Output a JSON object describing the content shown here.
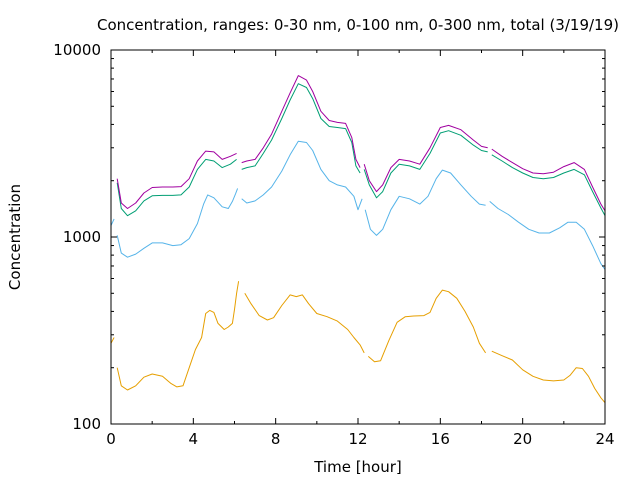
{
  "chart_data": {
    "type": "line",
    "title": "Concentration, ranges: 0-30 nm, 0-100 nm, 0-300 nm, total (3/19/19)",
    "xlabel": "Time [hour]",
    "ylabel": "Concentration",
    "xlim": [
      0,
      24
    ],
    "ylim": [
      100,
      10000
    ],
    "yscale": "log",
    "grid": false,
    "legend": "none",
    "x_ticks": [
      0,
      4,
      8,
      12,
      16,
      20,
      24
    ],
    "x_tick_labels": [
      "0",
      "4",
      "8",
      "12",
      "16",
      "20",
      "24"
    ],
    "y_ticks": [
      100,
      1000,
      10000
    ],
    "y_tick_labels": [
      "100",
      "1000",
      "10000"
    ],
    "series": [
      {
        "color": "#e69f00",
        "segments": [
          [
            [
              0.0,
              270
            ],
            [
              0.15,
              290
            ]
          ],
          [
            [
              0.3,
              200
            ],
            [
              0.5,
              160
            ],
            [
              0.8,
              152
            ],
            [
              1.2,
              160
            ],
            [
              1.6,
              178
            ],
            [
              2.0,
              185
            ],
            [
              2.5,
              180
            ],
            [
              2.9,
              165
            ],
            [
              3.2,
              158
            ],
            [
              3.5,
              160
            ],
            [
              3.8,
              200
            ],
            [
              4.1,
              250
            ],
            [
              4.4,
              290
            ],
            [
              4.6,
              390
            ],
            [
              4.8,
              405
            ],
            [
              5.0,
              395
            ],
            [
              5.2,
              345
            ],
            [
              5.5,
              320
            ],
            [
              5.7,
              330
            ],
            [
              5.9,
              345
            ],
            [
              6.0,
              410
            ],
            [
              6.1,
              500
            ],
            [
              6.2,
              580
            ]
          ],
          [
            [
              6.5,
              500
            ],
            [
              6.8,
              440
            ],
            [
              7.2,
              380
            ],
            [
              7.6,
              360
            ],
            [
              7.9,
              370
            ],
            [
              8.3,
              430
            ],
            [
              8.7,
              490
            ],
            [
              9.0,
              480
            ],
            [
              9.3,
              490
            ],
            [
              9.6,
              440
            ],
            [
              10.0,
              390
            ],
            [
              10.5,
              375
            ],
            [
              11.0,
              355
            ],
            [
              11.5,
              320
            ],
            [
              11.8,
              290
            ],
            [
              12.1,
              265
            ],
            [
              12.3,
              240
            ]
          ],
          [
            [
              12.5,
              230
            ],
            [
              12.8,
              215
            ],
            [
              13.1,
              218
            ],
            [
              13.5,
              280
            ],
            [
              13.9,
              350
            ],
            [
              14.3,
              375
            ],
            [
              14.7,
              378
            ],
            [
              15.2,
              380
            ],
            [
              15.5,
              395
            ],
            [
              15.8,
              470
            ],
            [
              16.1,
              520
            ],
            [
              16.4,
              510
            ],
            [
              16.8,
              470
            ],
            [
              17.2,
              400
            ],
            [
              17.6,
              330
            ],
            [
              17.9,
              270
            ],
            [
              18.2,
              240
            ]
          ],
          [
            [
              18.5,
              245
            ],
            [
              19.0,
              232
            ],
            [
              19.5,
              220
            ],
            [
              20.0,
              195
            ],
            [
              20.5,
              180
            ],
            [
              21.0,
              172
            ],
            [
              21.5,
              170
            ],
            [
              22.0,
              172
            ],
            [
              22.3,
              182
            ],
            [
              22.6,
              200
            ],
            [
              22.9,
              198
            ],
            [
              23.2,
              180
            ],
            [
              23.5,
              155
            ],
            [
              23.8,
              138
            ],
            [
              24.0,
              130
            ]
          ]
        ]
      },
      {
        "color": "#56b4e9",
        "segments": [
          [
            [
              0.0,
              1150
            ],
            [
              0.15,
              1250
            ]
          ],
          [
            [
              0.3,
              1020
            ],
            [
              0.5,
              820
            ],
            [
              0.8,
              780
            ],
            [
              1.2,
              810
            ],
            [
              1.6,
              870
            ],
            [
              2.0,
              930
            ],
            [
              2.5,
              930
            ],
            [
              3.0,
              900
            ],
            [
              3.4,
              910
            ],
            [
              3.8,
              980
            ],
            [
              4.2,
              1180
            ],
            [
              4.5,
              1500
            ],
            [
              4.7,
              1680
            ],
            [
              5.0,
              1620
            ],
            [
              5.4,
              1450
            ],
            [
              5.7,
              1420
            ],
            [
              5.9,
              1550
            ],
            [
              6.05,
              1700
            ],
            [
              6.15,
              1820
            ]
          ],
          [
            [
              6.35,
              1600
            ],
            [
              6.6,
              1520
            ],
            [
              7.0,
              1560
            ],
            [
              7.4,
              1680
            ],
            [
              7.8,
              1850
            ],
            [
              8.3,
              2250
            ],
            [
              8.7,
              2750
            ],
            [
              9.1,
              3250
            ],
            [
              9.5,
              3200
            ],
            [
              9.8,
              2900
            ],
            [
              10.2,
              2300
            ],
            [
              10.6,
              2000
            ],
            [
              11.0,
              1900
            ],
            [
              11.4,
              1850
            ],
            [
              11.8,
              1650
            ],
            [
              12.0,
              1400
            ],
            [
              12.2,
              1600
            ]
          ],
          [
            [
              12.35,
              1400
            ],
            [
              12.6,
              1100
            ],
            [
              12.9,
              1020
            ],
            [
              13.2,
              1100
            ],
            [
              13.6,
              1400
            ],
            [
              14.0,
              1650
            ],
            [
              14.5,
              1600
            ],
            [
              15.0,
              1500
            ],
            [
              15.4,
              1650
            ],
            [
              15.8,
              2050
            ],
            [
              16.1,
              2280
            ],
            [
              16.5,
              2200
            ],
            [
              17.0,
              1900
            ],
            [
              17.5,
              1650
            ],
            [
              17.9,
              1500
            ],
            [
              18.2,
              1480
            ]
          ],
          [
            [
              18.4,
              1550
            ],
            [
              18.8,
              1420
            ],
            [
              19.3,
              1320
            ],
            [
              19.8,
              1200
            ],
            [
              20.3,
              1100
            ],
            [
              20.8,
              1050
            ],
            [
              21.3,
              1050
            ],
            [
              21.8,
              1120
            ],
            [
              22.2,
              1200
            ],
            [
              22.6,
              1200
            ],
            [
              23.0,
              1100
            ],
            [
              23.4,
              900
            ],
            [
              23.8,
              720
            ],
            [
              24.0,
              670
            ]
          ]
        ]
      },
      {
        "color": "#009e73",
        "segments": [
          [
            [
              0.3,
              1950
            ],
            [
              0.5,
              1420
            ],
            [
              0.8,
              1300
            ],
            [
              1.2,
              1380
            ],
            [
              1.6,
              1560
            ],
            [
              2.0,
              1660
            ],
            [
              2.5,
              1670
            ],
            [
              3.0,
              1670
            ],
            [
              3.4,
              1680
            ],
            [
              3.8,
              1850
            ],
            [
              4.2,
              2300
            ],
            [
              4.6,
              2600
            ],
            [
              5.0,
              2550
            ],
            [
              5.4,
              2350
            ],
            [
              5.8,
              2450
            ],
            [
              6.1,
              2600
            ]
          ],
          [
            [
              6.35,
              2300
            ],
            [
              6.6,
              2350
            ],
            [
              7.0,
              2400
            ],
            [
              7.4,
              2800
            ],
            [
              7.8,
              3300
            ],
            [
              8.3,
              4300
            ],
            [
              8.7,
              5400
            ],
            [
              9.1,
              6600
            ],
            [
              9.5,
              6300
            ],
            [
              9.8,
              5500
            ],
            [
              10.2,
              4300
            ],
            [
              10.6,
              3900
            ],
            [
              11.0,
              3850
            ],
            [
              11.4,
              3800
            ],
            [
              11.7,
              3200
            ],
            [
              11.9,
              2400
            ],
            [
              12.1,
              2200
            ]
          ],
          [
            [
              12.3,
              2300
            ],
            [
              12.55,
              1900
            ],
            [
              12.9,
              1620
            ],
            [
              13.2,
              1750
            ],
            [
              13.6,
              2200
            ],
            [
              14.0,
              2450
            ],
            [
              14.5,
              2400
            ],
            [
              15.0,
              2300
            ],
            [
              15.5,
              2800
            ],
            [
              16.0,
              3600
            ],
            [
              16.4,
              3700
            ],
            [
              17.0,
              3500
            ],
            [
              17.6,
              3100
            ],
            [
              18.0,
              2900
            ],
            [
              18.3,
              2850
            ]
          ],
          [
            [
              18.5,
              2750
            ],
            [
              19.0,
              2550
            ],
            [
              19.5,
              2350
            ],
            [
              20.0,
              2200
            ],
            [
              20.5,
              2080
            ],
            [
              21.0,
              2050
            ],
            [
              21.5,
              2080
            ],
            [
              22.0,
              2200
            ],
            [
              22.5,
              2300
            ],
            [
              23.0,
              2150
            ],
            [
              23.4,
              1750
            ],
            [
              23.8,
              1430
            ],
            [
              24.0,
              1300
            ]
          ]
        ]
      },
      {
        "color": "#a000a0",
        "segments": [
          [
            [
              0.3,
              2050
            ],
            [
              0.5,
              1520
            ],
            [
              0.8,
              1420
            ],
            [
              1.2,
              1520
            ],
            [
              1.6,
              1720
            ],
            [
              2.0,
              1840
            ],
            [
              2.5,
              1850
            ],
            [
              3.0,
              1850
            ],
            [
              3.4,
              1860
            ],
            [
              3.8,
              2050
            ],
            [
              4.2,
              2550
            ],
            [
              4.6,
              2880
            ],
            [
              5.0,
              2850
            ],
            [
              5.4,
              2600
            ],
            [
              5.8,
              2700
            ],
            [
              6.1,
              2800
            ]
          ],
          [
            [
              6.35,
              2500
            ],
            [
              6.6,
              2550
            ],
            [
              7.0,
              2600
            ],
            [
              7.4,
              3000
            ],
            [
              7.8,
              3550
            ],
            [
              8.3,
              4700
            ],
            [
              8.7,
              5900
            ],
            [
              9.1,
              7300
            ],
            [
              9.5,
              6900
            ],
            [
              9.8,
              6000
            ],
            [
              10.2,
              4700
            ],
            [
              10.6,
              4200
            ],
            [
              11.0,
              4100
            ],
            [
              11.4,
              4050
            ],
            [
              11.7,
              3400
            ],
            [
              11.9,
              2600
            ],
            [
              12.1,
              2350
            ]
          ],
          [
            [
              12.3,
              2450
            ],
            [
              12.55,
              2000
            ],
            [
              12.9,
              1750
            ],
            [
              13.2,
              1900
            ],
            [
              13.6,
              2350
            ],
            [
              14.0,
              2600
            ],
            [
              14.5,
              2550
            ],
            [
              15.0,
              2450
            ],
            [
              15.5,
              3000
            ],
            [
              16.0,
              3850
            ],
            [
              16.4,
              3950
            ],
            [
              17.0,
              3750
            ],
            [
              17.6,
              3300
            ],
            [
              18.0,
              3050
            ],
            [
              18.3,
              3000
            ]
          ],
          [
            [
              18.5,
              2950
            ],
            [
              19.0,
              2700
            ],
            [
              19.5,
              2500
            ],
            [
              20.0,
              2320
            ],
            [
              20.5,
              2200
            ],
            [
              21.0,
              2180
            ],
            [
              21.5,
              2220
            ],
            [
              22.0,
              2380
            ],
            [
              22.5,
              2500
            ],
            [
              23.0,
              2300
            ],
            [
              23.4,
              1850
            ],
            [
              23.8,
              1500
            ],
            [
              24.0,
              1380
            ]
          ]
        ]
      }
    ]
  }
}
